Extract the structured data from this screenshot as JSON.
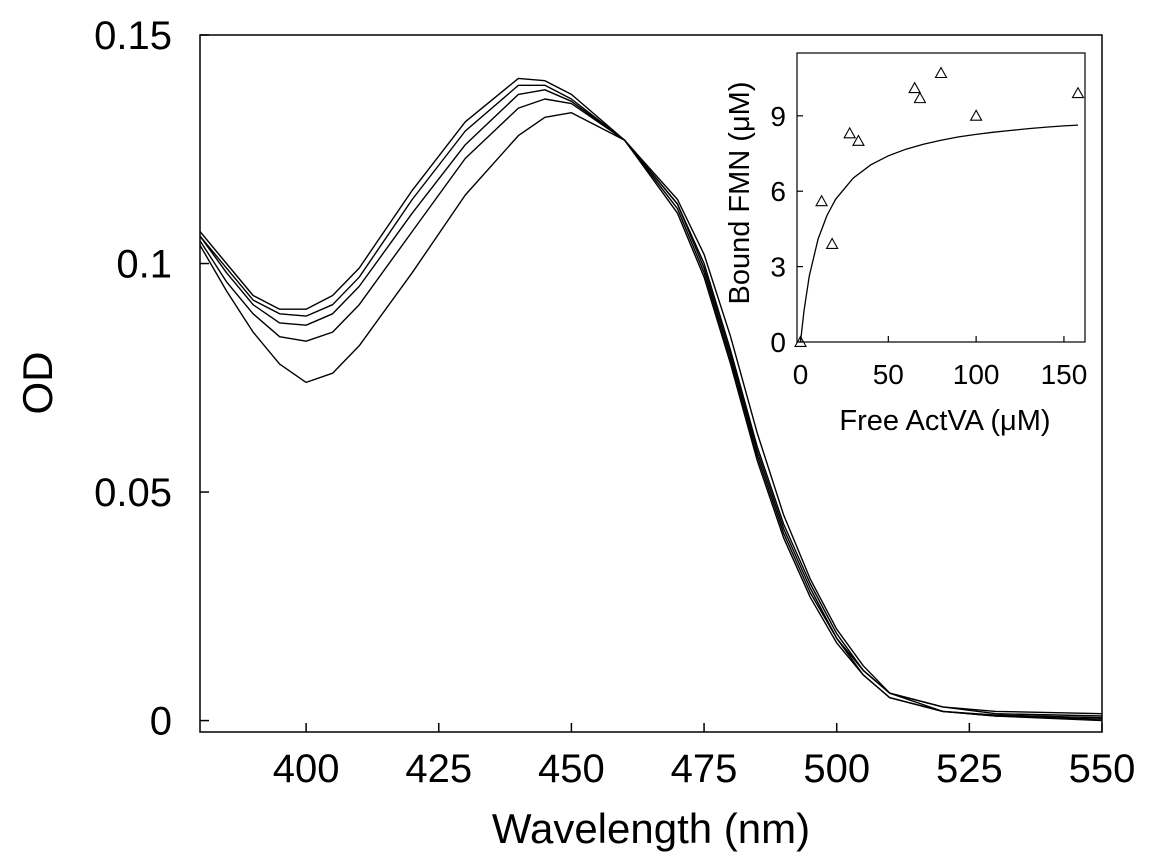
{
  "chart_data": [
    {
      "type": "line",
      "xlabel": "Wavelength (nm)",
      "ylabel": "OD",
      "xlim": [
        380,
        550
      ],
      "ylim": [
        -0.0025,
        0.15
      ],
      "xticks": [
        "400",
        "425",
        "450",
        "475",
        "500",
        "525",
        "550"
      ],
      "yticks": [
        "0",
        "0.05",
        "0.1",
        "0.15"
      ],
      "grid": false,
      "line_color": "#000000",
      "series": [
        {
          "x": [
            380,
            385,
            390,
            395,
            400,
            405,
            410,
            420,
            430,
            440,
            445,
            450,
            460,
            470,
            475,
            480,
            485,
            490,
            495,
            500,
            505,
            510,
            520,
            530,
            550
          ],
          "y": [
            0.107,
            0.1,
            0.093,
            0.09,
            0.09,
            0.093,
            0.099,
            0.116,
            0.131,
            0.1405,
            0.14,
            0.137,
            0.127,
            0.111,
            0.097,
            0.078,
            0.057,
            0.04,
            0.027,
            0.017,
            0.01,
            0.005,
            0.002,
            0.001,
            0.0
          ]
        },
        {
          "x": [
            380,
            385,
            390,
            395,
            400,
            405,
            410,
            420,
            430,
            440,
            445,
            450,
            460,
            470,
            475,
            480,
            485,
            490,
            495,
            500,
            505,
            510,
            520,
            530,
            550
          ],
          "y": [
            0.106,
            0.099,
            0.092,
            0.089,
            0.0885,
            0.091,
            0.097,
            0.114,
            0.129,
            0.139,
            0.139,
            0.136,
            0.127,
            0.112,
            0.098,
            0.079,
            0.058,
            0.041,
            0.028,
            0.018,
            0.01,
            0.005,
            0.002,
            0.001,
            0.0003
          ]
        },
        {
          "x": [
            380,
            385,
            390,
            395,
            400,
            405,
            410,
            420,
            430,
            440,
            445,
            450,
            460,
            470,
            475,
            480,
            485,
            490,
            495,
            500,
            505,
            510,
            520,
            530,
            550
          ],
          "y": [
            0.106,
            0.098,
            0.091,
            0.087,
            0.0865,
            0.089,
            0.095,
            0.111,
            0.126,
            0.137,
            0.138,
            0.1355,
            0.127,
            0.113,
            0.099,
            0.08,
            0.059,
            0.042,
            0.029,
            0.018,
            0.011,
            0.006,
            0.002,
            0.0012,
            0.0006
          ]
        },
        {
          "x": [
            380,
            385,
            390,
            395,
            400,
            405,
            410,
            420,
            430,
            440,
            445,
            450,
            460,
            470,
            475,
            480,
            485,
            490,
            495,
            500,
            505,
            510,
            520,
            530,
            550
          ],
          "y": [
            0.105,
            0.096,
            0.089,
            0.084,
            0.083,
            0.085,
            0.091,
            0.107,
            0.123,
            0.134,
            0.136,
            0.135,
            0.127,
            0.113,
            0.1,
            0.081,
            0.06,
            0.043,
            0.03,
            0.019,
            0.011,
            0.006,
            0.003,
            0.0015,
            0.001
          ]
        },
        {
          "x": [
            380,
            385,
            390,
            395,
            400,
            405,
            410,
            420,
            430,
            440,
            445,
            450,
            460,
            470,
            475,
            480,
            485,
            490,
            495,
            500,
            505,
            510,
            520,
            530,
            550
          ],
          "y": [
            0.104,
            0.094,
            0.085,
            0.078,
            0.074,
            0.076,
            0.082,
            0.098,
            0.115,
            0.128,
            0.132,
            0.133,
            0.127,
            0.114,
            0.102,
            0.084,
            0.063,
            0.045,
            0.031,
            0.02,
            0.012,
            0.006,
            0.003,
            0.002,
            0.0015
          ]
        }
      ]
    },
    {
      "type": "scatter",
      "xlabel": "Free ActVA (μM)",
      "ylabel": "Bound FMN (μM)",
      "xlim": [
        -2,
        162
      ],
      "ylim": [
        0,
        11.5
      ],
      "xticks": [
        "0",
        "50",
        "100",
        "150"
      ],
      "yticks": [
        "0",
        "3",
        "6",
        "9"
      ],
      "marker": "triangle",
      "points": {
        "x": [
          0,
          12,
          18,
          28,
          33,
          65,
          68,
          80,
          100,
          158
        ],
        "y": [
          0,
          5.6,
          3.9,
          8.3,
          8.0,
          10.1,
          9.7,
          10.7,
          9.0,
          9.9
        ]
      },
      "fit": {
        "x": [
          0,
          2,
          5,
          10,
          15,
          20,
          30,
          40,
          50,
          60,
          70,
          80,
          90,
          100,
          110,
          120,
          130,
          140,
          150,
          158
        ],
        "y": [
          0,
          1.24,
          2.63,
          4.1,
          5.03,
          5.68,
          6.52,
          7.05,
          7.41,
          7.67,
          7.87,
          8.03,
          8.16,
          8.26,
          8.35,
          8.42,
          8.49,
          8.55,
          8.6,
          8.63
        ]
      }
    }
  ]
}
